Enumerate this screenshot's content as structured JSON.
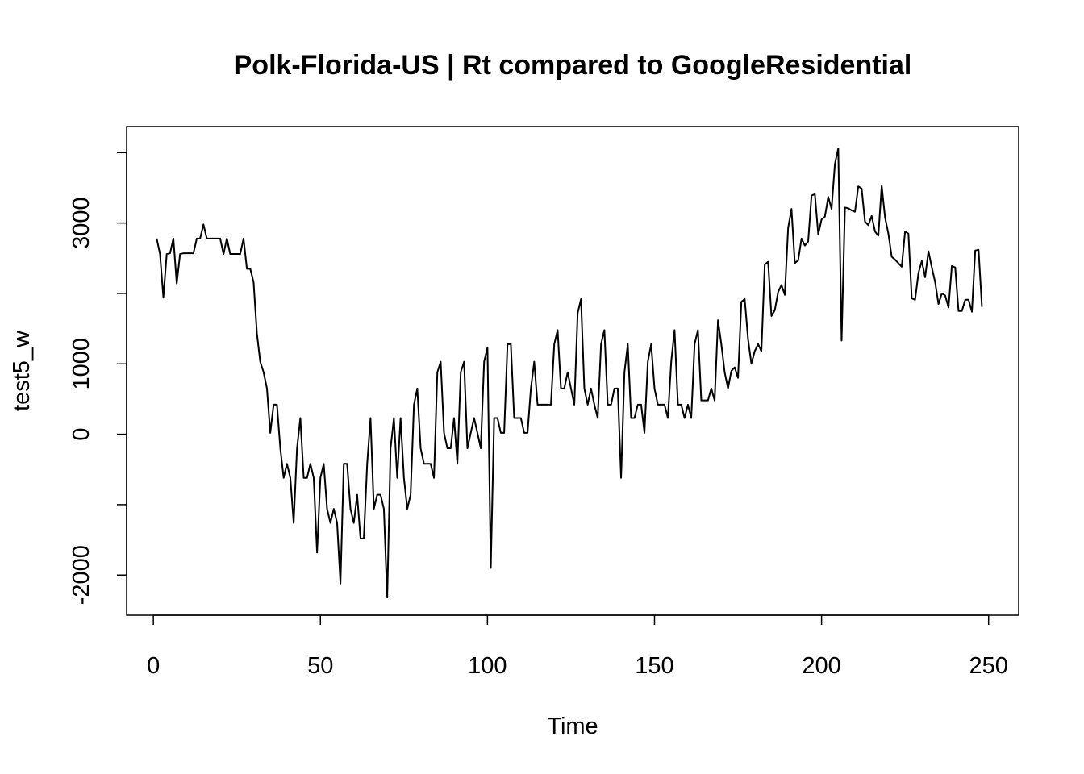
{
  "chart_data": {
    "type": "line",
    "title": "Polk-Florida-US | Rt compared to GoogleResidential",
    "xlabel": "Time",
    "ylabel": "test5_w",
    "xlim": [
      -8,
      259
    ],
    "ylim": [
      -2570,
      4370
    ],
    "xticks": [
      0,
      50,
      100,
      150,
      200,
      250
    ],
    "yticks": [
      -2000,
      -1000,
      0,
      1000,
      2000,
      3000,
      4000
    ],
    "ytick_labels": [
      "-2000",
      "",
      "0",
      "1000",
      "",
      "3000",
      ""
    ],
    "grid": false,
    "legend": "none",
    "line_color": "#000000",
    "series": [
      {
        "x": [
          1,
          2,
          3,
          4,
          5,
          6,
          7,
          8,
          9,
          10,
          11,
          12,
          13,
          14,
          15,
          16,
          17,
          18,
          19,
          20,
          21,
          22,
          23,
          24,
          25,
          26,
          27,
          28,
          29,
          30,
          31,
          32,
          33,
          34,
          35,
          36,
          37,
          38,
          39,
          40,
          41,
          42,
          43,
          44,
          45,
          46,
          47,
          48,
          49,
          50,
          51,
          52,
          53,
          54,
          55,
          56,
          57,
          58,
          59,
          60,
          61,
          62,
          63,
          64,
          65,
          66,
          67,
          68,
          69,
          70,
          71,
          72,
          73,
          74,
          75,
          76,
          77,
          78,
          79,
          80,
          81,
          82,
          83,
          84,
          85,
          86,
          87,
          88,
          89,
          90,
          91,
          92,
          93,
          94,
          95,
          96,
          97,
          98,
          99,
          100,
          101,
          102,
          103,
          104,
          105,
          106,
          107,
          108,
          109,
          110,
          111,
          112,
          113,
          114,
          115,
          116,
          117,
          118,
          119,
          120,
          121,
          122,
          123,
          124,
          125,
          126,
          127,
          128,
          129,
          130,
          131,
          132,
          133,
          134,
          135,
          136,
          137,
          138,
          139,
          140,
          141,
          142,
          143,
          144,
          145,
          146,
          147,
          148,
          149,
          150,
          151,
          152,
          153,
          154,
          155,
          156,
          157,
          158,
          159,
          160,
          161,
          162,
          163,
          164,
          165,
          166,
          167,
          168,
          169,
          170,
          171,
          172,
          173,
          174,
          175,
          176,
          177,
          178,
          179,
          180,
          181,
          182,
          183,
          184,
          185,
          186,
          187,
          188,
          189,
          190,
          191,
          192,
          193,
          194,
          195,
          196,
          197,
          198,
          199,
          200,
          201,
          202,
          203,
          204,
          205,
          206,
          207,
          208,
          209,
          210,
          211,
          212,
          213,
          214,
          215,
          216,
          217,
          218,
          219,
          220,
          221,
          222,
          223,
          224,
          225,
          226,
          227,
          228,
          229,
          230,
          231,
          232,
          233,
          234,
          235,
          236,
          237,
          238,
          239,
          240,
          241,
          242,
          243,
          244,
          245,
          246,
          247,
          248
        ],
        "y": [
          2780,
          2560,
          1940,
          2560,
          2570,
          2780,
          2140,
          2560,
          2570,
          2570,
          2570,
          2570,
          2780,
          2780,
          2980,
          2780,
          2780,
          2780,
          2780,
          2780,
          2560,
          2780,
          2560,
          2560,
          2560,
          2560,
          2780,
          2350,
          2350,
          2160,
          1430,
          1030,
          880,
          650,
          20,
          420,
          420,
          -200,
          -620,
          -420,
          -620,
          -1260,
          -200,
          230,
          -620,
          -620,
          -420,
          -620,
          -1680,
          -620,
          -420,
          -1060,
          -1260,
          -1060,
          -1260,
          -2120,
          -420,
          -420,
          -1060,
          -1260,
          -860,
          -1480,
          -1480,
          -420,
          230,
          -1060,
          -860,
          -860,
          -1060,
          -2320,
          -200,
          230,
          -620,
          230,
          -620,
          -1060,
          -860,
          420,
          650,
          -200,
          -420,
          -420,
          -420,
          -620,
          880,
          1030,
          20,
          -200,
          -200,
          230,
          -420,
          880,
          1030,
          -200,
          20,
          230,
          20,
          -200,
          1030,
          1230,
          -1900,
          230,
          230,
          20,
          20,
          1280,
          1280,
          230,
          230,
          230,
          20,
          20,
          650,
          1030,
          420,
          420,
          420,
          420,
          420,
          1280,
          1480,
          650,
          650,
          880,
          650,
          420,
          1720,
          1920,
          650,
          420,
          650,
          420,
          230,
          1280,
          1480,
          420,
          420,
          650,
          650,
          -620,
          880,
          1280,
          230,
          230,
          420,
          420,
          20,
          1030,
          1280,
          650,
          420,
          420,
          420,
          230,
          1030,
          1480,
          420,
          420,
          230,
          420,
          230,
          1280,
          1480,
          480,
          480,
          480,
          650,
          480,
          1620,
          1280,
          880,
          650,
          900,
          950,
          800,
          1880,
          1920,
          1350,
          1000,
          1180,
          1280,
          1180,
          2410,
          2450,
          1680,
          1760,
          2020,
          2120,
          1980,
          2930,
          3200,
          2430,
          2470,
          2780,
          2680,
          2740,
          3390,
          3410,
          2840,
          3050,
          3090,
          3370,
          3200,
          3840,
          4060,
          1330,
          3220,
          3210,
          3180,
          3160,
          3520,
          3490,
          3020,
          2970,
          3100,
          2880,
          2820,
          3530,
          3080,
          2850,
          2520,
          2480,
          2430,
          2380,
          2880,
          2850,
          1930,
          1910,
          2290,
          2460,
          2230,
          2600,
          2370,
          2160,
          1850,
          2000,
          1970,
          1800,
          2390,
          2370,
          1750,
          1750,
          1910,
          1910,
          1740,
          2610,
          2620,
          1810
        ]
      }
    ]
  }
}
